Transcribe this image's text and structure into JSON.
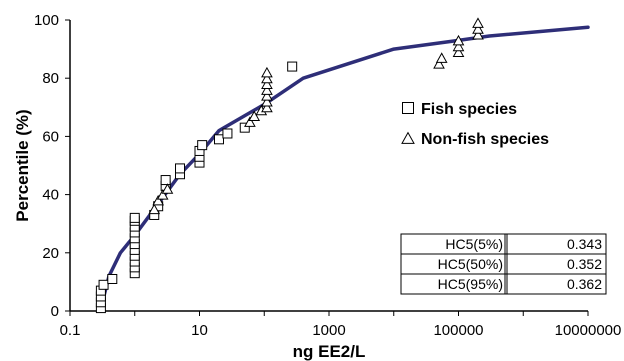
{
  "chart_data": {
    "type": "scatter",
    "xlabel": "ng EE2/L",
    "ylabel": "Percentile (%)",
    "x_scale": "log",
    "xlim": [
      0.1,
      10000000
    ],
    "ylim": [
      0,
      100
    ],
    "x_ticks": [
      "0.1",
      "10",
      "1000",
      "100000",
      "10000000"
    ],
    "x_tick_values": [
      0.1,
      10,
      1000,
      100000,
      10000000
    ],
    "y_ticks": [
      "0",
      "20",
      "40",
      "60",
      "80",
      "100"
    ],
    "y_tick_values": [
      0,
      20,
      40,
      60,
      80,
      100
    ],
    "grid": false,
    "legend_position": "right",
    "legend": [
      "Fish species",
      "Non-fish species"
    ],
    "series": [
      {
        "name": "Fish species",
        "marker": "square",
        "points": [
          [
            0.3,
            1
          ],
          [
            0.3,
            3
          ],
          [
            0.3,
            5
          ],
          [
            0.3,
            7
          ],
          [
            0.33,
            9
          ],
          [
            0.45,
            11
          ],
          [
            1,
            13
          ],
          [
            1,
            15
          ],
          [
            1,
            17
          ],
          [
            1,
            19
          ],
          [
            1,
            21
          ],
          [
            1,
            23
          ],
          [
            1,
            25
          ],
          [
            1,
            27
          ],
          [
            1,
            29
          ],
          [
            1,
            31
          ],
          [
            1,
            32
          ],
          [
            2,
            33
          ],
          [
            2.3,
            36
          ],
          [
            3,
            43
          ],
          [
            3,
            45
          ],
          [
            5,
            47
          ],
          [
            5,
            49
          ],
          [
            10,
            51
          ],
          [
            10,
            53
          ],
          [
            10,
            55
          ],
          [
            11,
            57
          ],
          [
            20,
            59
          ],
          [
            27,
            61
          ],
          [
            50,
            63
          ],
          [
            270,
            84
          ]
        ]
      },
      {
        "name": "Non-fish species",
        "marker": "triangle",
        "points": [
          [
            2,
            35
          ],
          [
            2.3,
            38
          ],
          [
            2.7,
            40
          ],
          [
            3.2,
            42
          ],
          [
            60,
            65
          ],
          [
            70,
            67
          ],
          [
            90,
            69
          ],
          [
            110,
            70
          ],
          [
            110,
            72
          ],
          [
            110,
            74
          ],
          [
            110,
            76
          ],
          [
            110,
            78
          ],
          [
            110,
            80
          ],
          [
            110,
            82
          ],
          [
            50000,
            85
          ],
          [
            55000,
            87
          ],
          [
            100000,
            89
          ],
          [
            100000,
            91
          ],
          [
            100000,
            93
          ],
          [
            200000,
            95
          ],
          [
            200000,
            97
          ],
          [
            200000,
            99
          ]
        ]
      },
      {
        "name": "",
        "type": "line",
        "color": "#2e2e78",
        "points": [
          [
            0.3,
            1
          ],
          [
            0.4,
            12
          ],
          [
            0.6,
            20
          ],
          [
            1,
            26
          ],
          [
            2,
            35
          ],
          [
            5,
            47
          ],
          [
            10,
            54
          ],
          [
            20,
            62
          ],
          [
            100,
            71
          ],
          [
            400,
            80
          ],
          [
            10000,
            90
          ],
          [
            100000,
            93
          ],
          [
            300000,
            94.5
          ],
          [
            10000000,
            97.5
          ]
        ]
      }
    ],
    "table": [
      {
        "label": "HC5(5%)",
        "value": "0.343"
      },
      {
        "label": "HC5(50%)",
        "value": "0.352"
      },
      {
        "label": "HC5(95%)",
        "value": "0.362"
      }
    ]
  }
}
